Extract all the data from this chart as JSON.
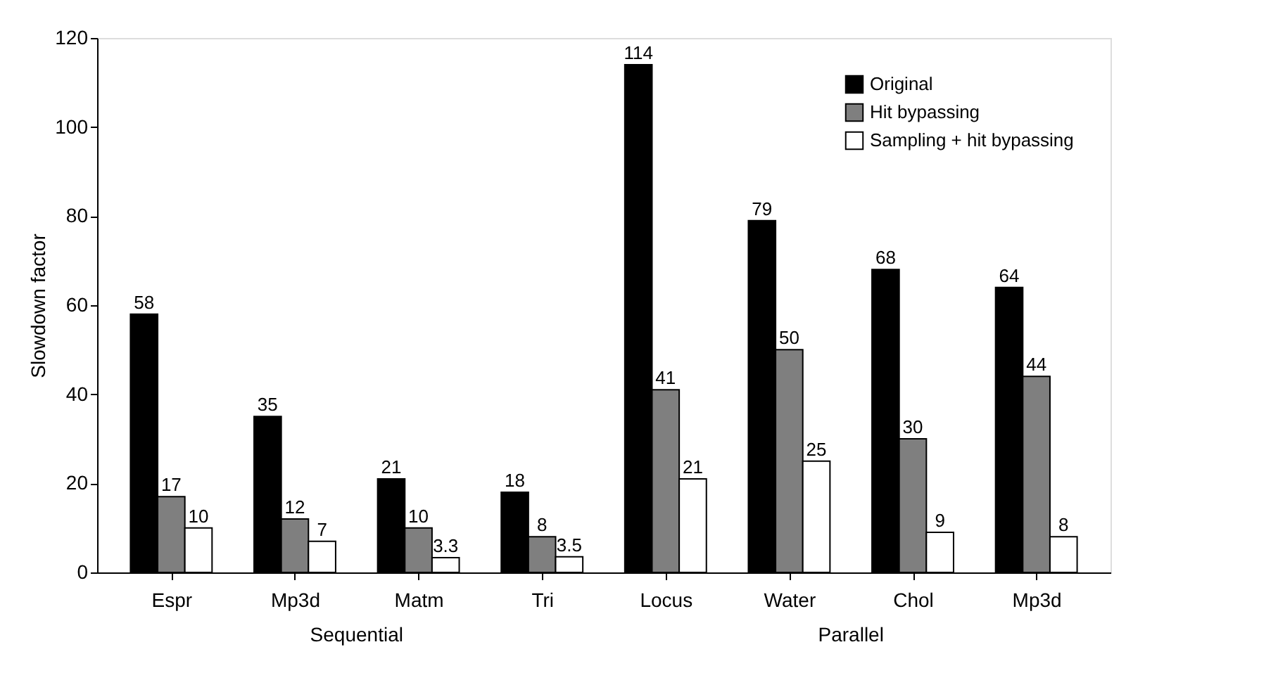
{
  "chart_data": {
    "type": "bar",
    "categories": [
      "Espr",
      "Mp3d",
      "Matm",
      "Tri",
      "Locus",
      "Water",
      "Chol",
      "Mp3d"
    ],
    "ylabel": "Slowdown factor",
    "series": [
      {
        "name": "Original",
        "color": "#000000",
        "values": [
          58,
          35,
          21,
          18,
          114,
          79,
          68,
          64
        ]
      },
      {
        "name": "Hit bypassing",
        "color": "#7f7f7f",
        "values": [
          17,
          12,
          10,
          8,
          41,
          50,
          30,
          44
        ]
      },
      {
        "name": "Sampling + hit bypassing",
        "color": "#ffffff",
        "values": [
          10,
          7,
          3.3,
          3.5,
          21,
          25,
          9,
          8
        ]
      }
    ],
    "ylim": [
      0,
      120
    ],
    "yticks": [
      0,
      20,
      40,
      60,
      80,
      100,
      120
    ],
    "data_labels": true,
    "grid": false,
    "legend": "top right",
    "annotations": [
      "Sequential",
      "Parallel"
    ]
  }
}
